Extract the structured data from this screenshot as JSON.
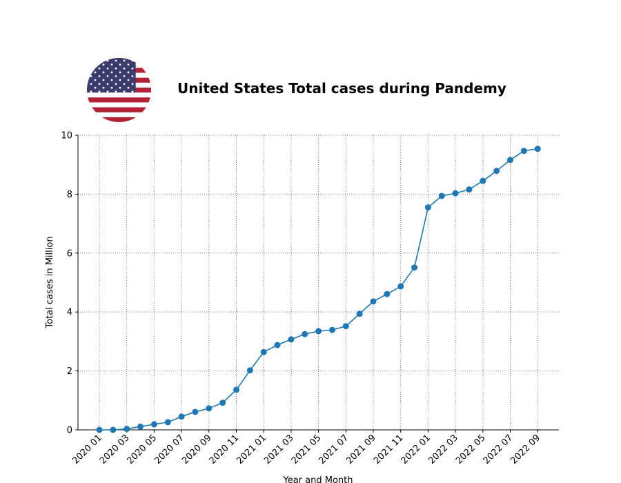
{
  "title": "United States Total cases during Pandemy",
  "flag_icon": "us-flag-icon",
  "colors": {
    "line": "#1f77b4",
    "grid": "#808080",
    "flag_red": "#b22234",
    "flag_blue": "#3c3b6e"
  },
  "chart_data": {
    "type": "line",
    "title": "United States Total cases during Pandemy",
    "xlabel": "Year and Month",
    "ylabel": "Total cases in Million",
    "ylim": [
      0,
      10
    ],
    "yticks": [
      0,
      2,
      4,
      6,
      8,
      10
    ],
    "grid": true,
    "x": [
      "2020 01",
      "2020 02",
      "2020 03",
      "2020 04",
      "2020 05",
      "2020 06",
      "2020 07",
      "2020 08",
      "2020 09",
      "2020 10",
      "2020 11",
      "2020 12",
      "2021 01",
      "2021 02",
      "2021 03",
      "2021 04",
      "2021 05",
      "2021 06",
      "2021 07",
      "2021 08",
      "2021 09",
      "2021 10",
      "2021 11",
      "2021 12",
      "2022 01",
      "2022 02",
      "2022 03",
      "2022 04",
      "2022 05",
      "2022 06",
      "2022 07",
      "2022 08",
      "2022 09"
    ],
    "xtick_labels": [
      "2020 01",
      "2020 03",
      "2020 05",
      "2020 07",
      "2020 09",
      "2020 11",
      "2021 01",
      "2021 03",
      "2021 05",
      "2021 07",
      "2021 09",
      "2021 11",
      "2022 01",
      "2022 03",
      "2022 05",
      "2022 07",
      "2022 09"
    ],
    "series": [
      {
        "values": [
          0.0,
          0.0,
          0.03,
          0.11,
          0.19,
          0.26,
          0.45,
          0.61,
          0.73,
          0.92,
          1.36,
          2.02,
          2.64,
          2.88,
          3.07,
          3.25,
          3.35,
          3.39,
          3.52,
          3.94,
          4.36,
          4.61,
          4.87,
          5.51,
          7.55,
          7.94,
          8.03,
          8.16,
          8.45,
          8.79,
          9.16,
          9.47,
          9.54
        ]
      }
    ]
  }
}
